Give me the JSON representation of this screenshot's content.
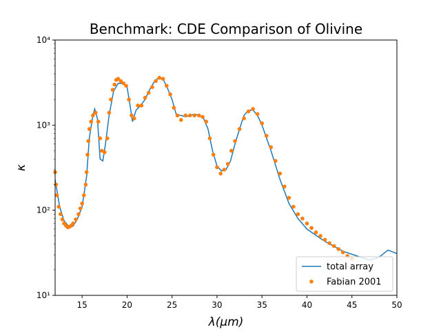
{
  "chart_data": {
    "type": "line",
    "title": "Benchmark: CDE Comparison of Olivine",
    "x_label": "λ(μm)",
    "y_label": "κ",
    "xlim": [
      12,
      50
    ],
    "xticks": [
      15,
      20,
      25,
      30,
      35,
      40,
      45,
      50
    ],
    "ylim": [
      10,
      10000
    ],
    "yscale": "log",
    "yticks": [
      {
        "value": 10,
        "label": "10¹"
      },
      {
        "value": 100,
        "label": "10²"
      },
      {
        "value": 1000,
        "label": "10³"
      },
      {
        "value": 10000,
        "label": "10⁴"
      }
    ],
    "legend": "lower right",
    "series": [
      {
        "name": "total array",
        "color": "#1f77b4",
        "mark": "line",
        "x": [
          12.0,
          12.5,
          13.0,
          13.5,
          14.0,
          14.5,
          15.0,
          15.5,
          15.8,
          16.2,
          16.4,
          16.7,
          17.0,
          17.3,
          17.6,
          18.0,
          18.5,
          19.0,
          19.5,
          20.0,
          20.3,
          20.6,
          21.0,
          21.5,
          22.0,
          22.5,
          23.0,
          23.5,
          24.0,
          24.5,
          25.0,
          25.5,
          26.0,
          26.5,
          27.0,
          27.5,
          28.0,
          28.5,
          29.0,
          29.5,
          30.0,
          30.5,
          31.0,
          31.5,
          32.0,
          32.5,
          33.0,
          33.5,
          34.0,
          34.5,
          35.0,
          36.0,
          37.0,
          38.0,
          39.0,
          40.0,
          42.0,
          44.0,
          46.0,
          47.0,
          48.0,
          49.0,
          50.0
        ],
        "values": [
          230,
          110,
          75,
          65,
          65,
          80,
          110,
          250,
          700,
          1300,
          1550,
          1200,
          400,
          380,
          600,
          1300,
          2500,
          3100,
          3100,
          2800,
          1800,
          1100,
          1500,
          1700,
          2000,
          2600,
          3200,
          3600,
          3500,
          2700,
          2000,
          1300,
          1300,
          1250,
          1300,
          1350,
          1300,
          1200,
          900,
          500,
          330,
          290,
          300,
          380,
          600,
          900,
          1300,
          1500,
          1500,
          1300,
          1000,
          500,
          230,
          120,
          80,
          60,
          43,
          33,
          28,
          26,
          28,
          34,
          31
        ]
      },
      {
        "name": "Fabian 2001",
        "color": "#ff7f0e",
        "mark": "dot",
        "x": [
          12.0,
          12.1,
          12.2,
          12.4,
          12.6,
          12.8,
          13.0,
          13.2,
          13.4,
          13.6,
          13.8,
          14.0,
          14.3,
          14.6,
          14.8,
          15.0,
          15.2,
          15.4,
          15.5,
          15.6,
          15.7,
          15.8,
          16.0,
          16.2,
          16.5,
          16.8,
          17.0,
          17.2,
          17.5,
          17.8,
          18.0,
          18.2,
          18.4,
          18.6,
          18.8,
          19.0,
          19.3,
          19.6,
          19.9,
          20.2,
          20.5,
          20.8,
          21.2,
          21.6,
          22.0,
          22.4,
          22.8,
          23.2,
          23.6,
          24.0,
          24.4,
          24.8,
          25.2,
          25.6,
          26.0,
          26.5,
          27.0,
          27.5,
          28.0,
          28.4,
          28.8,
          29.2,
          29.6,
          30.0,
          30.4,
          30.8,
          31.2,
          31.6,
          32.0,
          32.5,
          33.0,
          33.5,
          34.0,
          34.5,
          35.0,
          35.5,
          36.0,
          36.5,
          37.0,
          37.5,
          38.0,
          38.5,
          39.0,
          39.5,
          40.0,
          40.5,
          41.0,
          41.5,
          42.0,
          42.5,
          43.0,
          43.5,
          44.0,
          44.5,
          45.0
        ],
        "values": [
          280,
          200,
          150,
          110,
          90,
          78,
          70,
          66,
          63,
          64,
          66,
          70,
          78,
          90,
          105,
          120,
          150,
          200,
          280,
          450,
          650,
          900,
          1100,
          1300,
          1400,
          1100,
          700,
          500,
          480,
          700,
          1400,
          2000,
          2600,
          3000,
          3400,
          3500,
          3300,
          3100,
          2900,
          2000,
          1300,
          1200,
          1700,
          1700,
          2100,
          2400,
          2800,
          3300,
          3600,
          3500,
          2900,
          2300,
          1600,
          1300,
          1150,
          1300,
          1300,
          1300,
          1300,
          1250,
          1100,
          700,
          450,
          320,
          270,
          300,
          350,
          500,
          650,
          900,
          1200,
          1450,
          1550,
          1350,
          1050,
          750,
          550,
          380,
          270,
          190,
          140,
          110,
          90,
          80,
          70,
          62,
          55,
          50,
          45,
          41,
          38,
          35,
          32,
          29,
          27
        ]
      }
    ]
  }
}
